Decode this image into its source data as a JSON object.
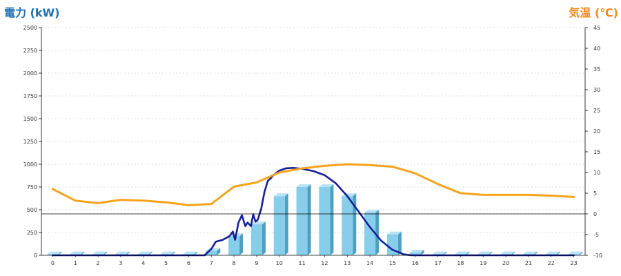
{
  "chart_data": {
    "type": "bar",
    "left_axis_title": "電力 (kW)",
    "right_axis_title": "気温 (℃)",
    "left_ylim": [
      0,
      2500
    ],
    "left_ticks": [
      0,
      250,
      500,
      750,
      1000,
      1250,
      1500,
      1750,
      2000,
      2250,
      2500
    ],
    "right_ylim": [
      -10,
      45
    ],
    "right_ticks": [
      -10,
      -5,
      0,
      5,
      10,
      15,
      20,
      25,
      30,
      35,
      40,
      45
    ],
    "grid": true,
    "x": [
      "0",
      "1",
      "2",
      "3",
      "4",
      "5",
      "6",
      "7",
      "8",
      "9",
      "10",
      "11",
      "12",
      "13",
      "14",
      "15",
      "16",
      "17",
      "18",
      "19",
      "20",
      "21",
      "22",
      "23"
    ],
    "series": [
      {
        "type": "bar",
        "axis": "left",
        "values": [
          5,
          5,
          5,
          5,
          5,
          5,
          5,
          50,
          210,
          340,
          650,
          750,
          750,
          650,
          470,
          230,
          30,
          5,
          5,
          5,
          5,
          5,
          5,
          5
        ]
      },
      {
        "type": "line",
        "axis": "left",
        "x": [
          0,
          1,
          2,
          3,
          4,
          5,
          6,
          6.7,
          7,
          7.2,
          7.5,
          7.8,
          7.95,
          8.05,
          8.2,
          8.35,
          8.5,
          8.6,
          8.75,
          8.85,
          8.95,
          9.05,
          9.2,
          9.35,
          9.5,
          9.6,
          9.75,
          10,
          10.3,
          10.6,
          11,
          11.5,
          12,
          12.5,
          13,
          13.5,
          14,
          14.5,
          15,
          15.5,
          15.85,
          16,
          16.5,
          17,
          18,
          19,
          20,
          21,
          22,
          23
        ],
        "values": [
          0,
          0,
          0,
          0,
          0,
          0,
          0,
          0,
          70,
          150,
          170,
          210,
          260,
          170,
          360,
          440,
          320,
          360,
          320,
          450,
          370,
          390,
          510,
          700,
          820,
          840,
          880,
          930,
          955,
          960,
          950,
          925,
          880,
          790,
          650,
          480,
          310,
          160,
          60,
          10,
          0,
          0,
          0,
          0,
          0,
          0,
          0,
          0,
          0,
          0
        ]
      },
      {
        "type": "line",
        "axis": "right",
        "x": [
          0,
          1,
          2,
          3,
          4,
          5,
          6,
          7,
          8,
          9,
          10,
          11,
          12,
          13,
          14,
          15,
          16,
          17,
          18,
          19,
          20,
          21,
          22,
          23
        ],
        "values": [
          6,
          3.2,
          2.6,
          3.4,
          3.2,
          2.8,
          2.1,
          2.4,
          6.6,
          7.6,
          10,
          11,
          11.6,
          12,
          11.8,
          11.4,
          9.8,
          7.2,
          5,
          4.6,
          4.6,
          4.6,
          4.4,
          4.1
        ]
      }
    ],
    "colors": {
      "left_title": "#1f6fb3",
      "right_title": "#f08a1c",
      "bar_front": "#87ceea",
      "bar_side": "#4f9fc2",
      "bar_top": "#b9e3f4",
      "power_line": "#141e96",
      "temp_line": "#f7a21b",
      "grid": "#b8b8b8",
      "zero_line": "#000000"
    }
  }
}
